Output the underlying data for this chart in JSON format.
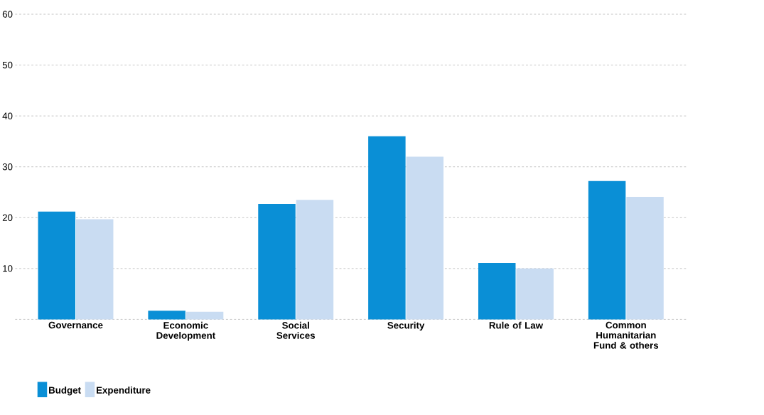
{
  "chart_data": {
    "type": "bar",
    "categories": [
      "Governance",
      "Economic Development",
      "Social Services",
      "Security",
      "Rule of Law",
      "Common Humanitarian Fund & others"
    ],
    "series": [
      {
        "name": "Budget",
        "color": "#0a8fd6",
        "values": [
          21.2,
          1.7,
          22.7,
          36,
          11.1,
          27.2
        ]
      },
      {
        "name": "Expenditure",
        "color": "#c9dcf2",
        "values": [
          19.7,
          1.5,
          23.5,
          32,
          10,
          24.1
        ]
      }
    ],
    "ylim": [
      0,
      60
    ],
    "yticks": [
      {
        "value": 0,
        "label": null
      },
      10,
      20,
      30,
      40,
      50,
      60
    ],
    "grid": "y",
    "legend": "bottom left"
  }
}
